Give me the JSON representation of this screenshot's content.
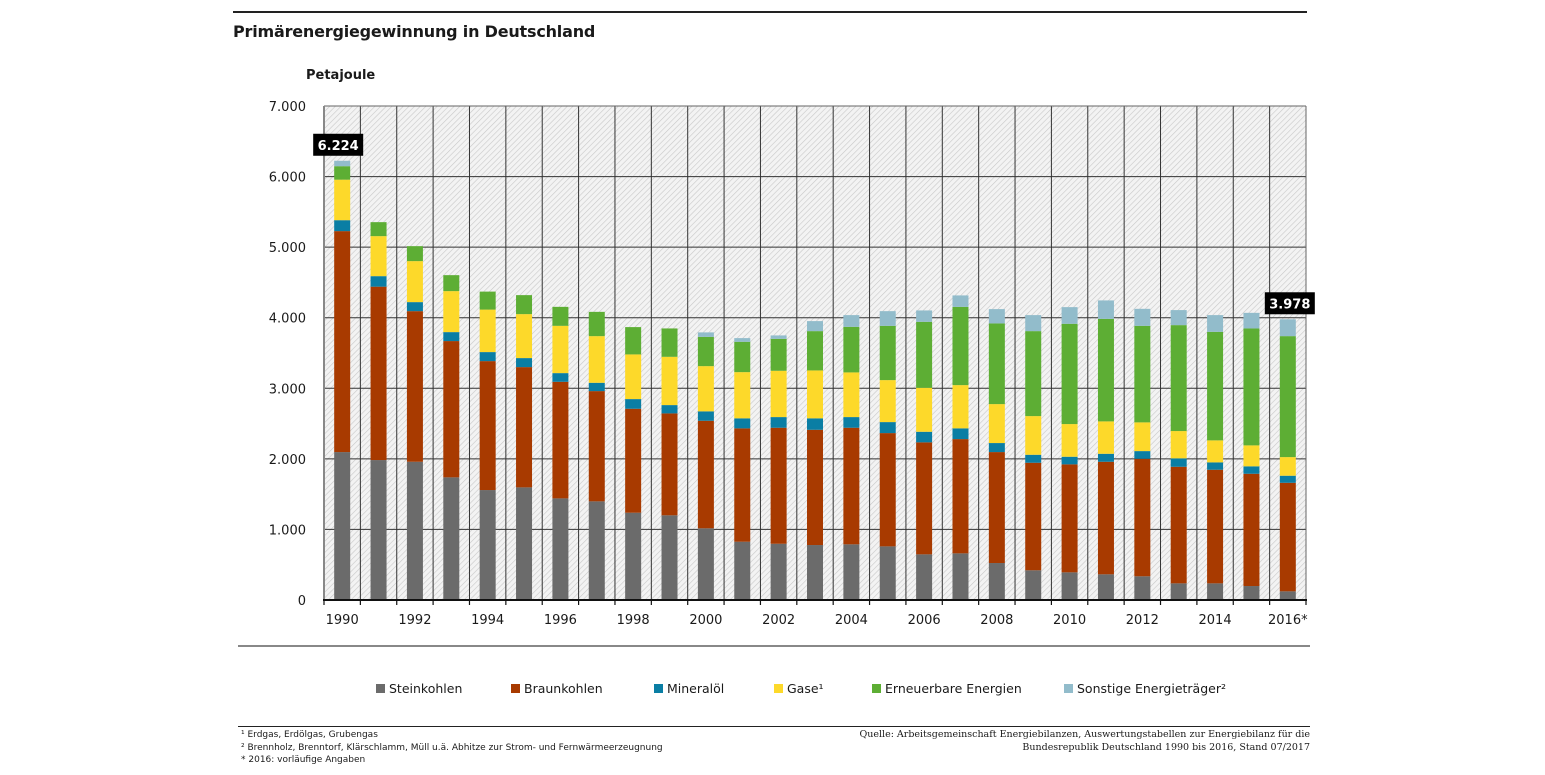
{
  "header": {
    "title": "Primärenergiegewinnung in Deutschland",
    "unit_label": "Petajoule"
  },
  "chart_data": {
    "type": "bar",
    "stacked": true,
    "title": "Primärenergiegewinnung in Deutschland",
    "xlabel": "",
    "ylabel": "Petajoule",
    "ylim": [
      0,
      7000
    ],
    "yticks": [
      0,
      1000,
      2000,
      3000,
      4000,
      5000,
      6000,
      7000
    ],
    "ytick_labels": [
      "0",
      "1.000",
      "2.000",
      "3.000",
      "4.000",
      "5.000",
      "6.000",
      "7.000"
    ],
    "grid": true,
    "categories": [
      "1990",
      "1991",
      "1992",
      "1993",
      "1994",
      "1995",
      "1996",
      "1997",
      "1998",
      "1999",
      "2000",
      "2001",
      "2002",
      "2003",
      "2004",
      "2005",
      "2006",
      "2007",
      "2008",
      "2009",
      "2010",
      "2011",
      "2012",
      "2013",
      "2014",
      "2015",
      "2016*"
    ],
    "xtick_labels": [
      "1990",
      "",
      "1992",
      "",
      "1994",
      "",
      "1996",
      "",
      "1998",
      "",
      "2000",
      "",
      "2002",
      "",
      "2004",
      "",
      "2006",
      "",
      "2008",
      "",
      "2010",
      "",
      "2012",
      "",
      "2014",
      "",
      "2016*"
    ],
    "series": [
      {
        "name": "Steinkohlen",
        "color": "#6b6b6b",
        "values": [
          2096,
          1983,
          1959,
          1738,
          1558,
          1596,
          1440,
          1398,
          1237,
          1200,
          1016,
          826,
          797,
          779,
          789,
          760,
          647,
          661,
          524,
          421,
          392,
          364,
          336,
          236,
          236,
          198,
          123
        ]
      },
      {
        "name": "Braunkohlen",
        "color": "#a83a00",
        "values": [
          3131,
          2457,
          2134,
          1931,
          1827,
          1704,
          1652,
          1562,
          1473,
          1444,
          1524,
          1606,
          1644,
          1633,
          1652,
          1605,
          1587,
          1619,
          1572,
          1524,
          1530,
          1595,
          1665,
          1652,
          1610,
          1591,
          1538
        ]
      },
      {
        "name": "Mineralöl",
        "color": "#0a7ea4",
        "values": [
          155,
          149,
          128,
          127,
          128,
          128,
          123,
          118,
          137,
          118,
          133,
          142,
          151,
          162,
          151,
          156,
          150,
          152,
          128,
          113,
          108,
          113,
          109,
          119,
          104,
          105,
          100
        ]
      },
      {
        "name": "Gase¹",
        "color": "#fdd92a",
        "values": [
          574,
          567,
          581,
          581,
          602,
          623,
          670,
          661,
          633,
          684,
          641,
          655,
          656,
          679,
          633,
          595,
          623,
          613,
          552,
          548,
          463,
          459,
          407,
          387,
          312,
          297,
          264
        ]
      },
      {
        "name": "Erneuerbare Energien",
        "color": "#5dae34",
        "values": [
          191,
          198,
          212,
          226,
          255,
          269,
          269,
          344,
          387,
          402,
          415,
          430,
          453,
          557,
          646,
          769,
          935,
          1109,
          1143,
          1204,
          1421,
          1453,
          1368,
          1501,
          1538,
          1657,
          1714
        ]
      },
      {
        "name": "Sonstige Energieträger²",
        "color": "#92bccb",
        "values": [
          77,
          0,
          0,
          0,
          0,
          0,
          0,
          0,
          0,
          0,
          63,
          52,
          48,
          142,
          166,
          208,
          161,
          162,
          203,
          227,
          236,
          261,
          241,
          213,
          237,
          221,
          239
        ]
      }
    ],
    "annotations": [
      {
        "category": "1990",
        "text": "6.224",
        "value": 6224
      },
      {
        "category": "2016*",
        "text": "3.978",
        "value": 3978
      }
    ],
    "legend_position": "bottom"
  },
  "legend": [
    {
      "label": "Steinkohlen",
      "color": "#6b6b6b"
    },
    {
      "label": "Braunkohlen",
      "color": "#a83a00"
    },
    {
      "label": "Mineralöl",
      "color": "#0a7ea4"
    },
    {
      "label": "Gase¹",
      "color": "#fdd92a"
    },
    {
      "label": "Erneuerbare Energien",
      "color": "#5dae34"
    },
    {
      "label": "Sonstige Energieträger²",
      "color": "#92bccb"
    }
  ],
  "footnotes": [
    "¹ Erdgas, Erdölgas, Grubengas",
    "² Brennholz, Brenntorf, Klärschlamm, Müll u.ä. Abhitze zur Strom- und Fernwärmeerzeugnung",
    "* 2016: vorläufige Angaben"
  ],
  "source": [
    "Quelle: Arbeitsgemeinschaft Energiebilanzen, Auswertungstabellen zur Energiebilanz für die",
    "Bundesrepublik Deutschland 1990 bis 2016, Stand 07/2017"
  ]
}
